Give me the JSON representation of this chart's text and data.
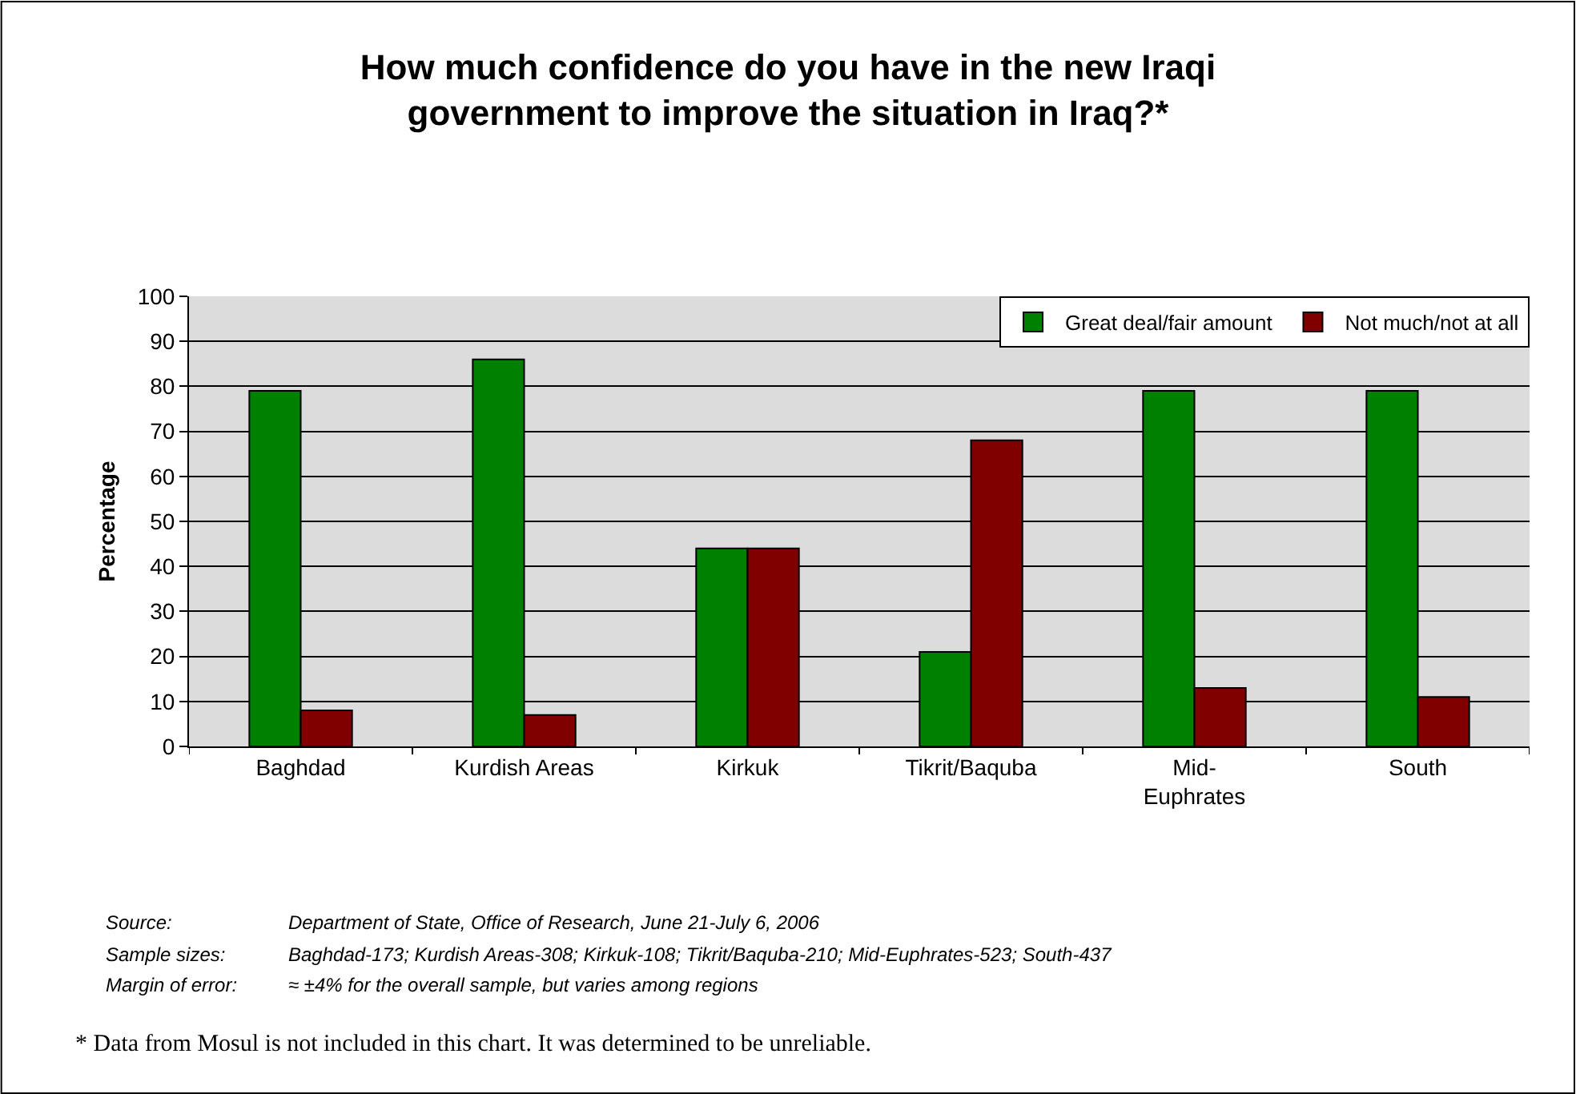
{
  "chart_data": {
    "type": "bar",
    "title": "How much confidence do you have in the new Iraqi government to improve the situation in Iraq?*",
    "ylabel": "Percentage",
    "categories": [
      "Baghdad",
      "Kurdish Areas",
      "Kirkuk",
      "Tikrit/Baquba",
      "Mid-Euphrates",
      "South"
    ],
    "series": [
      {
        "name": "Great deal/fair amount",
        "color": "#008000",
        "values": [
          79,
          86,
          44,
          21,
          79,
          79
        ]
      },
      {
        "name": "Not much/not at all",
        "color": "#800000",
        "values": [
          8,
          7,
          44,
          68,
          13,
          11
        ]
      }
    ],
    "ylim": [
      0,
      100
    ],
    "yticks": [
      0,
      10,
      20,
      30,
      40,
      50,
      60,
      70,
      80,
      90,
      100
    ],
    "grid": "y",
    "legend": "top right",
    "annotations": [
      "Source:",
      "Department of State, Office of Research, June 21-July 6, 2006",
      "Sample sizes:",
      "Baghdad-173; Kurdish Areas-308; Kirkuk-108; Tikrit/Baquba-210; Mid-Euphrates-523; South-437",
      "Margin of error:",
      "≈ ±4% for the overall sample, but varies among regions",
      "* Data from Mosul is not included in this chart. It was determined to be unreliable."
    ]
  }
}
